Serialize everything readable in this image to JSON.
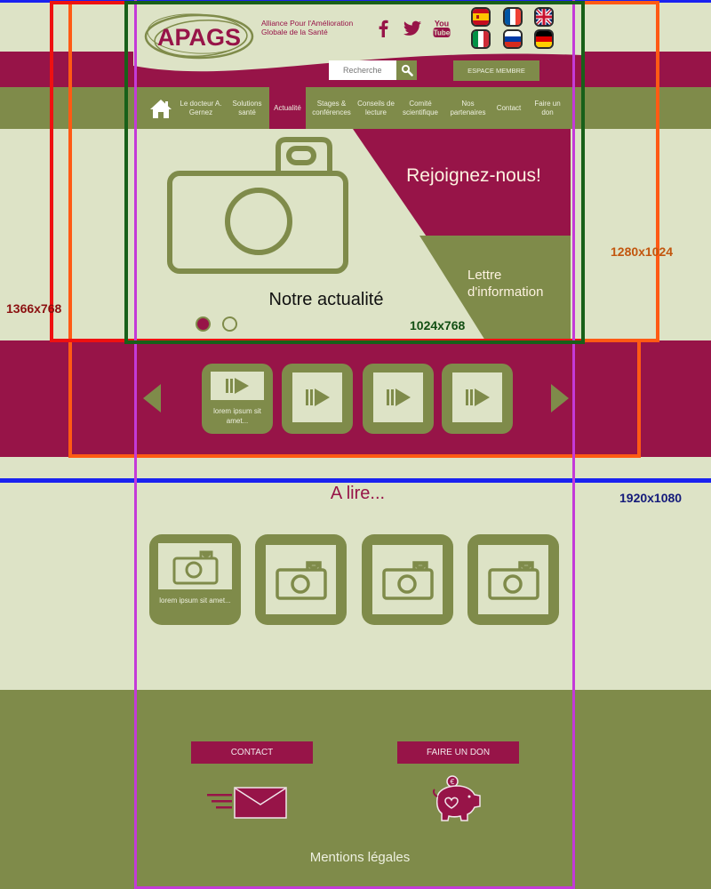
{
  "header": {
    "logo_text": "APAGS",
    "tagline": "Alliance Pour l'Amélioration Globale de la Santé",
    "social": [
      "facebook-icon",
      "twitter-icon",
      "youtube-icon"
    ],
    "youtube_label": "You Tube",
    "flags": [
      "es",
      "fr",
      "uk",
      "it",
      "ru",
      "de"
    ],
    "search_placeholder": "Recherche",
    "member_button": "ESPACE MEMBRE"
  },
  "nav": {
    "items": [
      {
        "label": "Le docteur A. Gernez"
      },
      {
        "label": "Solutions santé"
      },
      {
        "label": "Actualité",
        "active": true
      },
      {
        "label": "Stages & conférences"
      },
      {
        "label": "Conseils de lecture"
      },
      {
        "label": "Comité scientifique"
      },
      {
        "label": "Nos partenaires"
      },
      {
        "label": "Contact"
      },
      {
        "label": "Faire un don"
      }
    ]
  },
  "hero": {
    "title": "Notre actualité",
    "join": "Rejoignez-nous!",
    "newsletter": "Lettre d'information",
    "slides_total": 2,
    "slide_active": 1
  },
  "videos": {
    "caption": "lorem ipsum sit amet...",
    "count": 4
  },
  "reading": {
    "title": "A lire...",
    "caption": "lorem ipsum sit amet...",
    "count": 4
  },
  "footer": {
    "contact": "CONTACT",
    "donate": "FAIRE UN DON",
    "legal": "Mentions légales"
  },
  "resolutions": {
    "r1366": "1366x768",
    "r1280": "1280x1024",
    "r1024": "1024x768",
    "r1920": "1920x1080"
  },
  "colors": {
    "maroon": "#971448",
    "olive": "#7f8b4a",
    "cream": "#dde3c6"
  }
}
